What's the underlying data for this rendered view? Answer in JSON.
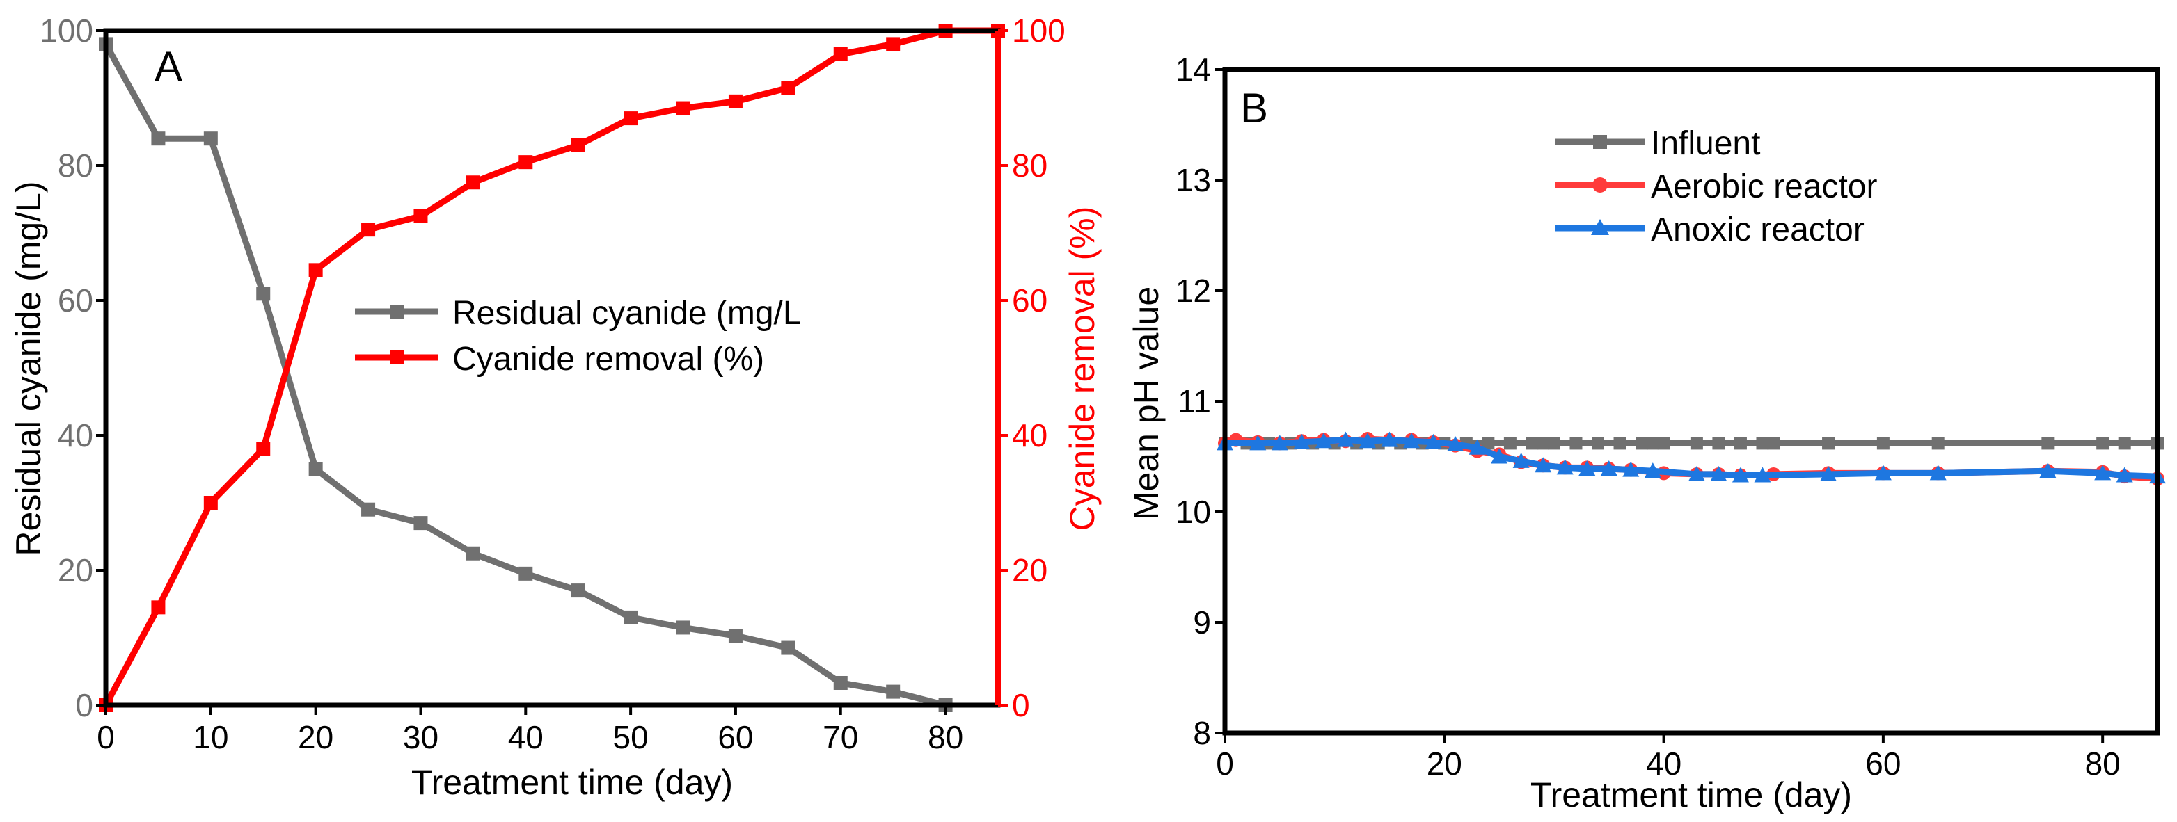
{
  "colors": {
    "gray": "#707070",
    "red": "#ff0000",
    "pink_red": "#ff3b3b",
    "blue": "#1e77e0",
    "axis": "#000000"
  },
  "chart_data": [
    {
      "panel": "A",
      "type": "line",
      "xlabel": "Treatment time (day)",
      "ylabel": "Residual cyanide (mg/L)",
      "ylabel_right": "Cyanide removal (%)",
      "xlim": [
        0,
        85
      ],
      "ylim": [
        0,
        100
      ],
      "ylim_right": [
        0,
        100
      ],
      "x_ticks": [
        "0",
        "10",
        "20",
        "30",
        "40",
        "50",
        "60",
        "70",
        "80"
      ],
      "y_ticks": [
        "0",
        "20",
        "40",
        "60",
        "80",
        "100"
      ],
      "y_ticks_right": [
        "0",
        "20",
        "40",
        "60",
        "80",
        "100"
      ],
      "legend_position": "center",
      "series": [
        {
          "name": "Residual cyanide (mg/L",
          "axis": "left",
          "color": "#707070",
          "marker": "square",
          "x": [
            0,
            5,
            10,
            15,
            20,
            25,
            30,
            35,
            40,
            45,
            50,
            55,
            60,
            65,
            70,
            75,
            80
          ],
          "values": [
            98,
            84,
            84,
            61,
            35,
            29,
            27,
            22.5,
            19.5,
            17,
            13,
            11.5,
            10.3,
            8.5,
            3.3,
            2,
            0
          ]
        },
        {
          "name": "Cyanide removal (%)",
          "axis": "right",
          "color": "#ff0000",
          "marker": "square",
          "x": [
            0,
            5,
            10,
            15,
            20,
            25,
            30,
            35,
            40,
            45,
            50,
            55,
            60,
            65,
            70,
            75,
            80,
            85
          ],
          "values": [
            0,
            14.5,
            30,
            38,
            64.5,
            70.5,
            72.5,
            77.5,
            80.5,
            83,
            87,
            88.5,
            89.5,
            91.5,
            96.5,
            98,
            100,
            100
          ]
        }
      ]
    },
    {
      "panel": "B",
      "type": "line",
      "xlabel": "Treatment time (day)",
      "ylabel": "Mean pH value",
      "xlim": [
        0,
        85
      ],
      "ylim": [
        8,
        14
      ],
      "x_ticks": [
        "0",
        "20",
        "40",
        "60",
        "80"
      ],
      "y_ticks": [
        "8",
        "9",
        "10",
        "11",
        "12",
        "13",
        "14"
      ],
      "legend_position": "top-center",
      "series": [
        {
          "name": "Influent",
          "color": "#707070",
          "marker": "square",
          "x": [
            0,
            2,
            4,
            6,
            8,
            10,
            12,
            14,
            16,
            18,
            20,
            22,
            24,
            26,
            28,
            29,
            30,
            32,
            34,
            36,
            38,
            39,
            40,
            43,
            45,
            47,
            49,
            50,
            55,
            60,
            65,
            75,
            80,
            82,
            85
          ],
          "values": [
            10.62,
            10.62,
            10.62,
            10.62,
            10.62,
            10.62,
            10.62,
            10.62,
            10.62,
            10.62,
            10.62,
            10.62,
            10.62,
            10.62,
            10.62,
            10.62,
            10.62,
            10.62,
            10.62,
            10.62,
            10.62,
            10.62,
            10.62,
            10.62,
            10.62,
            10.62,
            10.62,
            10.62,
            10.62,
            10.62,
            10.62,
            10.62,
            10.62,
            10.62,
            10.62
          ]
        },
        {
          "name": "Aerobic reactor",
          "color": "#ff3b3b",
          "marker": "circle",
          "x": [
            0,
            1,
            3,
            5,
            7,
            9,
            11,
            13,
            15,
            17,
            19,
            21,
            23,
            25,
            27,
            29,
            31,
            33,
            35,
            37,
            40,
            43,
            45,
            47,
            50,
            55,
            60,
            65,
            75,
            80,
            82,
            85
          ],
          "values": [
            10.62,
            10.65,
            10.63,
            10.62,
            10.64,
            10.65,
            10.64,
            10.66,
            10.65,
            10.65,
            10.63,
            10.6,
            10.55,
            10.52,
            10.45,
            10.42,
            10.4,
            10.4,
            10.39,
            10.38,
            10.35,
            10.34,
            10.34,
            10.33,
            10.34,
            10.35,
            10.35,
            10.35,
            10.37,
            10.36,
            10.32,
            10.3
          ]
        },
        {
          "name": "Anoxic reactor",
          "color": "#1e77e0",
          "marker": "triangle",
          "x": [
            0,
            3,
            5,
            7,
            9,
            11,
            13,
            15,
            17,
            19,
            21,
            23,
            25,
            27,
            29,
            31,
            33,
            35,
            37,
            39,
            43,
            45,
            47,
            49,
            55,
            60,
            65,
            75,
            80,
            82,
            85
          ],
          "values": [
            10.62,
            10.62,
            10.62,
            10.63,
            10.64,
            10.65,
            10.64,
            10.65,
            10.64,
            10.63,
            10.61,
            10.58,
            10.5,
            10.46,
            10.42,
            10.4,
            10.39,
            10.39,
            10.38,
            10.37,
            10.34,
            10.34,
            10.33,
            10.33,
            10.34,
            10.35,
            10.35,
            10.37,
            10.35,
            10.33,
            10.32
          ]
        }
      ]
    }
  ]
}
